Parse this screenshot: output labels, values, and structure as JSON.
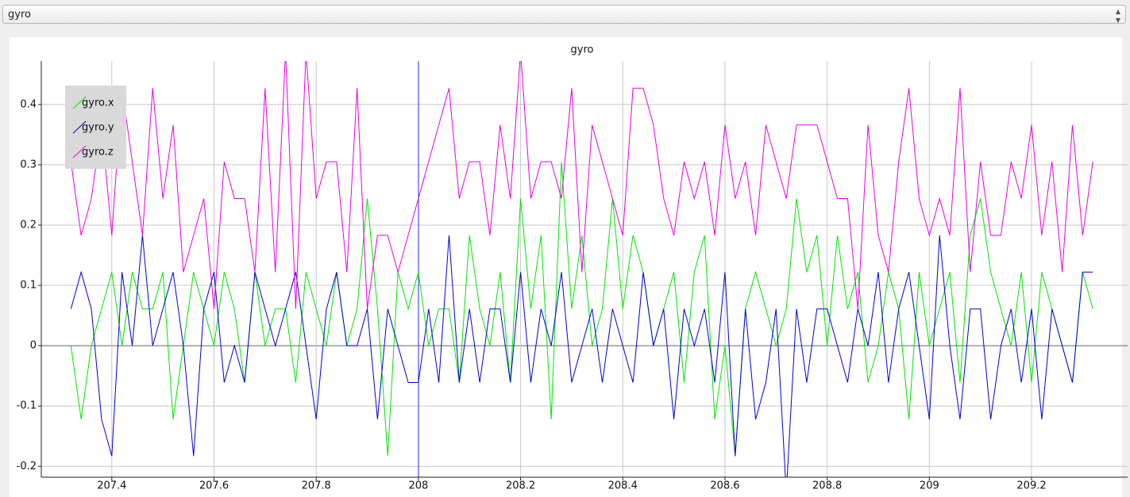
{
  "combobox": {
    "selected": "gyro"
  },
  "chart_data": {
    "type": "line",
    "title": "gyro",
    "x": [
      207.32,
      207.34,
      207.36,
      207.38,
      207.4,
      207.42,
      207.44,
      207.46,
      207.48,
      207.5,
      207.52,
      207.54,
      207.56,
      207.58,
      207.6,
      207.62,
      207.64,
      207.66,
      207.68,
      207.7,
      207.72,
      207.74,
      207.76,
      207.78,
      207.8,
      207.82,
      207.84,
      207.86,
      207.88,
      207.9,
      207.92,
      207.94,
      207.96,
      207.98,
      208.0,
      208.02,
      208.04,
      208.06,
      208.08,
      208.1,
      208.12,
      208.14,
      208.16,
      208.18,
      208.2,
      208.22,
      208.24,
      208.26,
      208.28,
      208.3,
      208.32,
      208.34,
      208.36,
      208.38,
      208.4,
      208.42,
      208.44,
      208.46,
      208.48,
      208.5,
      208.52,
      208.54,
      208.56,
      208.58,
      208.6,
      208.62,
      208.64,
      208.66,
      208.68,
      208.7,
      208.72,
      208.74,
      208.76,
      208.78,
      208.8,
      208.82,
      208.84,
      208.86,
      208.88,
      208.9,
      208.92,
      208.94,
      208.96,
      208.98,
      209.0,
      209.02,
      209.04,
      209.06,
      209.08,
      209.1,
      209.12,
      209.14,
      209.16,
      209.18,
      209.2,
      209.22,
      209.24,
      209.26,
      209.28,
      209.3,
      209.32
    ],
    "series": [
      {
        "name": "gyro.x",
        "color": "#00e600",
        "values": [
          0,
          -0.122,
          0,
          0.061,
          0.122,
          0,
          0.122,
          0.061,
          0.061,
          0.122,
          -0.122,
          0,
          0.122,
          0.061,
          0,
          0.122,
          0.061,
          -0.061,
          0.122,
          0,
          0.061,
          0.061,
          -0.061,
          0.122,
          0.061,
          0,
          0.122,
          0,
          0.061,
          0.244,
          0.061,
          -0.183,
          0.122,
          0.061,
          0.122,
          0,
          0.061,
          0.061,
          -0.061,
          0.183,
          0.061,
          0,
          0.122,
          -0.061,
          0.244,
          0.061,
          0.183,
          -0.122,
          0.305,
          0.061,
          0.183,
          0,
          0.061,
          0.244,
          0.061,
          0.183,
          0.122,
          0,
          0.061,
          0.122,
          -0.061,
          0.122,
          0.183,
          -0.122,
          0,
          -0.183,
          0.061,
          0.122,
          0.061,
          0,
          0.061,
          0.244,
          0.122,
          0.183,
          0,
          0.183,
          0.061,
          0.122,
          -0.061,
          0,
          0.122,
          0.061,
          -0.122,
          0.122,
          0,
          0.061,
          0.122,
          -0.061,
          0.183,
          0.244,
          0.122,
          0.061,
          0,
          0.122,
          -0.061,
          0.122,
          0.061,
          0,
          -0.061,
          0.122,
          0.061
        ]
      },
      {
        "name": "gyro.y",
        "color": "#0000d0",
        "values": [
          0.061,
          0.122,
          0.061,
          -0.122,
          -0.183,
          0.122,
          0,
          0.183,
          0,
          0.061,
          0.122,
          0,
          -0.183,
          0.061,
          0.122,
          -0.061,
          0,
          -0.061,
          0.122,
          0.061,
          0,
          0.061,
          0.122,
          0,
          -0.122,
          0.061,
          0.122,
          0,
          0,
          0.061,
          -0.122,
          0.061,
          0,
          -0.061,
          -0.061,
          0.061,
          -0.061,
          0.183,
          -0.061,
          0.061,
          -0.061,
          0.061,
          0.061,
          -0.061,
          0.122,
          -0.061,
          0.061,
          0,
          0.122,
          -0.061,
          0,
          0.061,
          -0.061,
          0.061,
          0,
          -0.061,
          0.122,
          0,
          0.061,
          -0.122,
          0.061,
          0,
          0.061,
          -0.061,
          0.122,
          -0.183,
          0.061,
          -0.122,
          -0.061,
          0.061,
          -0.244,
          0.061,
          -0.061,
          0.061,
          0.061,
          0,
          -0.061,
          0.061,
          0,
          0.122,
          -0.061,
          0.061,
          0.122,
          0,
          -0.122,
          0.183,
          0,
          -0.122,
          0.061,
          0.061,
          -0.122,
          0,
          0.061,
          -0.061,
          0.061,
          -0.122,
          0.061,
          0,
          -0.061,
          0.122,
          0.122
        ]
      },
      {
        "name": "gyro.z",
        "color": "#e600e6",
        "values": [
          0.305,
          0.183,
          0.244,
          0.366,
          0.183,
          0.427,
          0.305,
          0.183,
          0.427,
          0.244,
          0.366,
          0.122,
          0.183,
          0.244,
          0.061,
          0.305,
          0.244,
          0.244,
          0.122,
          0.427,
          0.122,
          0.488,
          0.061,
          0.488,
          0.244,
          0.305,
          0.305,
          0.122,
          0.427,
          0.061,
          0.183,
          0.183,
          0.122,
          0.183,
          0.244,
          0.305,
          0.366,
          0.427,
          0.244,
          0.305,
          0.305,
          0.183,
          0.366,
          0.244,
          0.488,
          0.244,
          0.305,
          0.305,
          0.244,
          0.427,
          0.122,
          0.366,
          0.305,
          0.244,
          0.183,
          0.427,
          0.427,
          0.366,
          0.244,
          0.183,
          0.305,
          0.244,
          0.305,
          0.183,
          0.366,
          0.244,
          0.305,
          0.183,
          0.366,
          0.305,
          0.244,
          0.366,
          0.366,
          0.366,
          0.305,
          0.244,
          0.244,
          0.061,
          0.366,
          0.183,
          0.122,
          0.305,
          0.427,
          0.244,
          0.183,
          0.244,
          0.183,
          0.427,
          0.122,
          0.305,
          0.183,
          0.183,
          0.305,
          0.244,
          0.366,
          0.183,
          0.305,
          0.122,
          0.366,
          0.183,
          0.305
        ]
      }
    ],
    "xlim": [
      207.262,
      209.388
    ],
    "xticks": [
      207.4,
      207.6,
      207.8,
      208,
      208.2,
      208.4,
      208.6,
      208.8,
      209,
      209.2
    ],
    "ylim": [
      -0.218,
      0.472
    ],
    "yticks": [
      -0.2,
      -0.1,
      0,
      0.1,
      0.2,
      0.3,
      0.4
    ],
    "grid": true,
    "legend": "upper-left"
  }
}
